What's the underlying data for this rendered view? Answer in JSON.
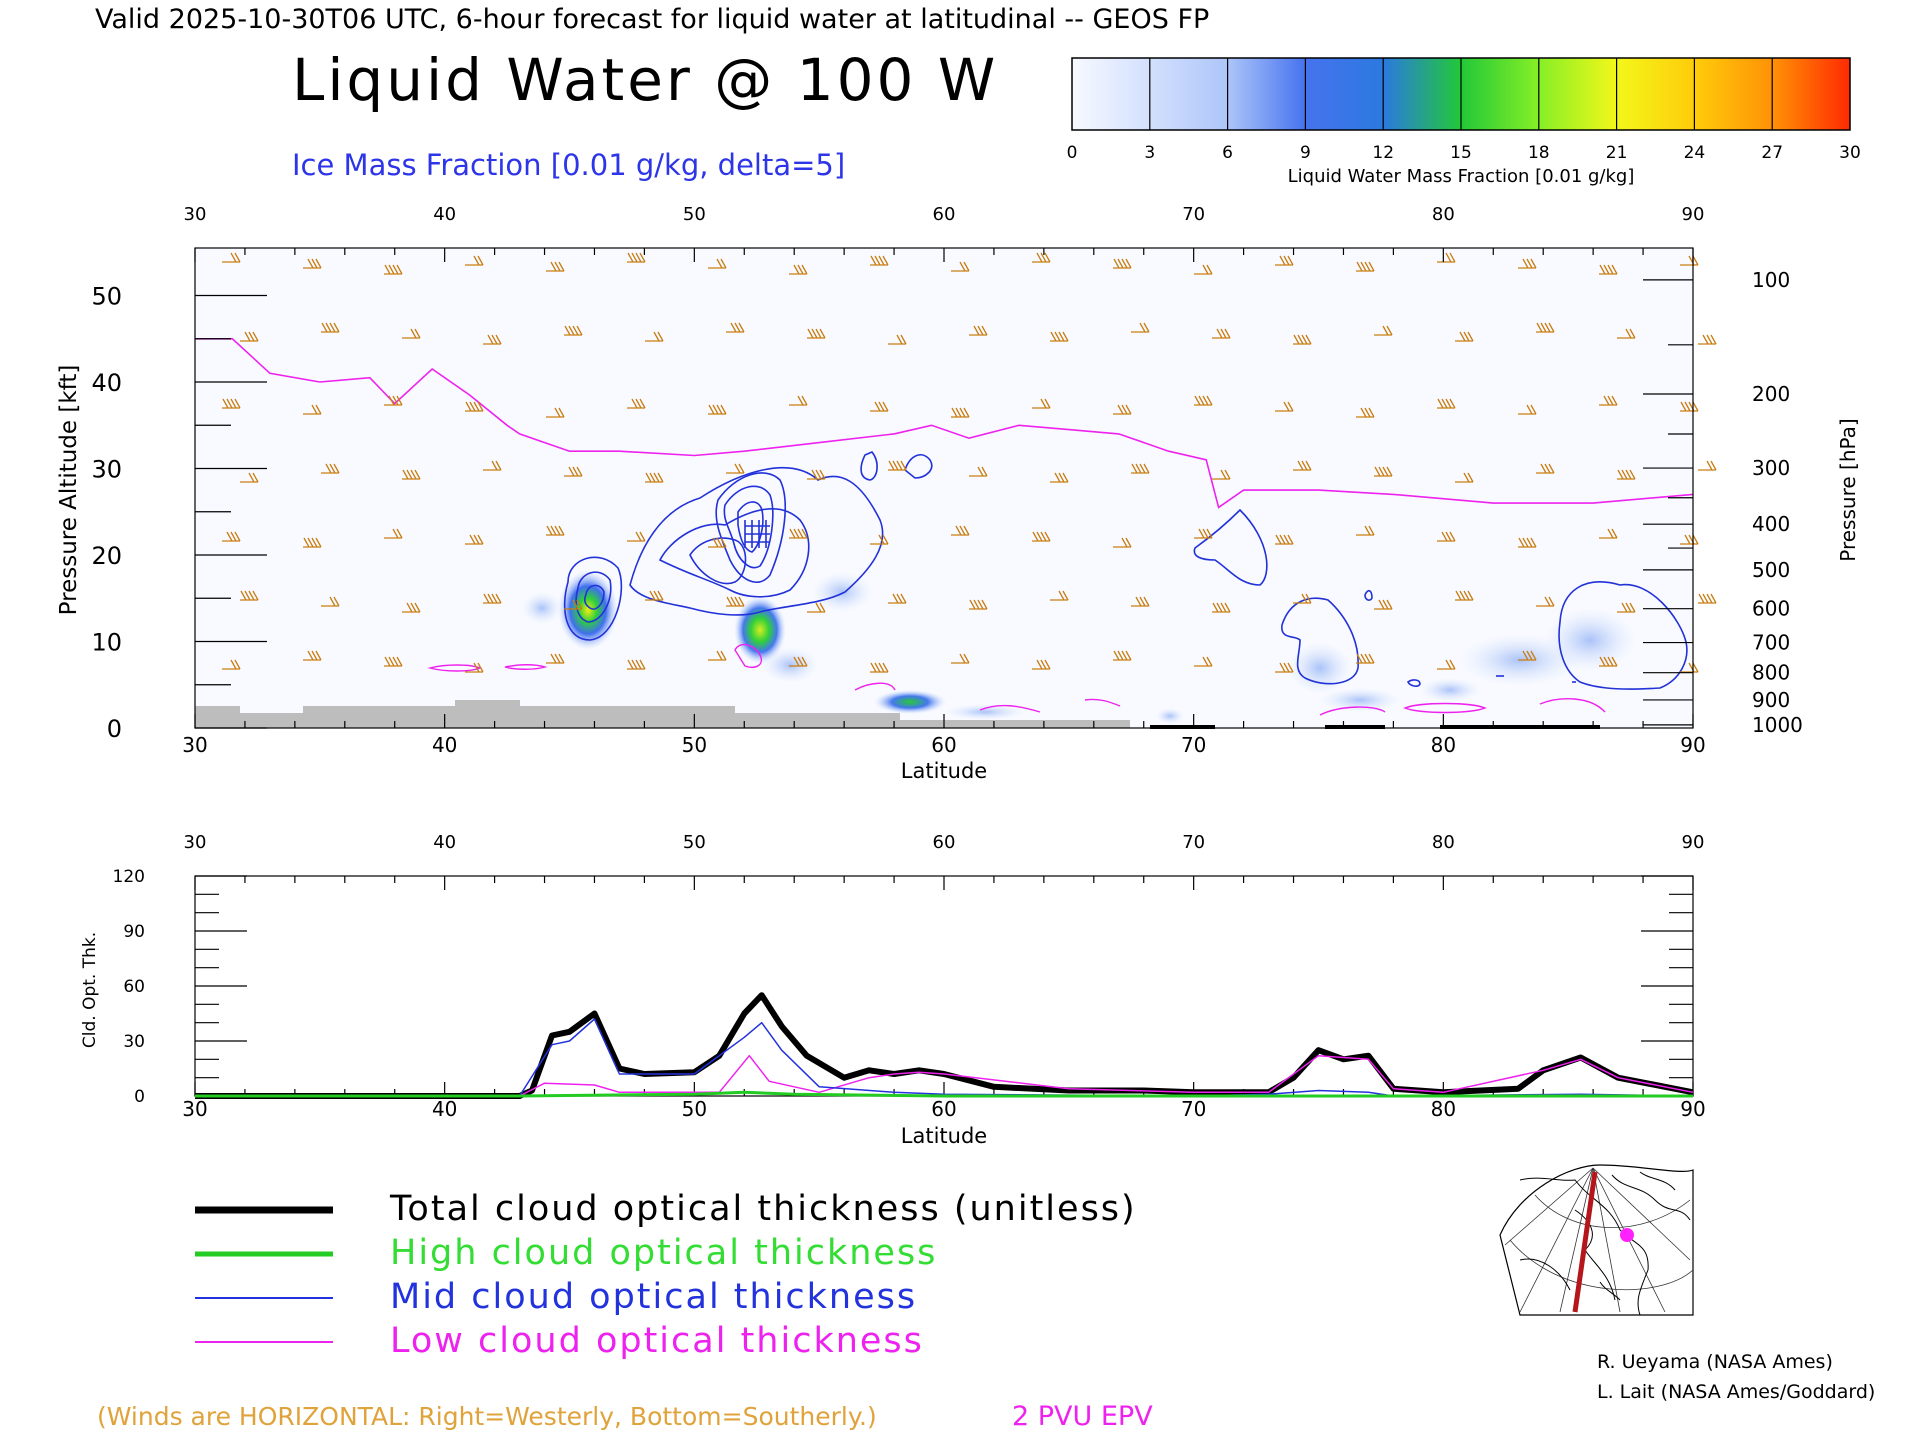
{
  "header": {
    "valid_line": "Valid 2025-10-30T06 UTC, 6-hour forecast for liquid water at latitudinal -- GEOS FP",
    "title": "Liquid Water @ 100 W",
    "ice_label": "Ice Mass Fraction [0.01 g/kg, delta=5]"
  },
  "colorbar": {
    "ticks": [
      "0",
      "3",
      "6",
      "9",
      "12",
      "15",
      "18",
      "21",
      "24",
      "27",
      "30"
    ],
    "label": "Liquid Water Mass Fraction [0.01 g/kg]",
    "colors": [
      "#eef3ff",
      "#c6d6fb",
      "#9ab7f6",
      "#3e6cf0",
      "#2d9fb0",
      "#30d43a",
      "#78ec25",
      "#e8f41a",
      "#ffc808",
      "#ff7d05"
    ]
  },
  "top_panel": {
    "y_label_left": "Pressure Altitude [kft]",
    "y_label_right": "Pressure [hPa]",
    "x_label": "Latitude",
    "x_ticks": [
      "30",
      "40",
      "50",
      "60",
      "70",
      "80",
      "90"
    ],
    "left_ticks": [
      "0",
      "10",
      "20",
      "30",
      "40",
      "50"
    ],
    "right_ticks": [
      "100",
      "200",
      "300",
      "400",
      "500",
      "600",
      "700",
      "800",
      "900",
      "1000"
    ]
  },
  "bottom_panel": {
    "y_label": "Cld. Opt. Thk.",
    "x_label": "Latitude",
    "x_ticks": [
      "30",
      "40",
      "50",
      "60",
      "70",
      "80",
      "90"
    ],
    "y_ticks": [
      "0",
      "30",
      "60",
      "90",
      "120"
    ]
  },
  "legend": {
    "items": [
      {
        "label": "Total cloud optical thickness (unitless)",
        "color": "#000000"
      },
      {
        "label": "High cloud optical thickness",
        "color": "#22cc22"
      },
      {
        "label": "Mid cloud optical thickness",
        "color": "#2233dd"
      },
      {
        "label": "Low cloud optical thickness",
        "color": "#ee22ee"
      }
    ]
  },
  "footer": {
    "winds_note": "(Winds are HORIZONTAL: Right=Westerly, Bottom=Southerly.)",
    "epv_label": "2 PVU EPV",
    "credit1": "R. Ueyama (NASA Ames)",
    "credit2": "L. Lait (NASA Ames/Goddard)"
  },
  "chart_data": [
    {
      "type": "heatmap",
      "title": "Liquid Water @ 100 W",
      "xlabel": "Latitude",
      "ylabel": "Pressure Altitude [kft]",
      "xlim": [
        30,
        90
      ],
      "ylim": [
        0,
        55
      ],
      "liquid_water_maxima": [
        {
          "lat": 45.8,
          "alt_kft": 13.5,
          "value": 21
        },
        {
          "lat": 52.6,
          "alt_kft": 11.5,
          "value": 18
        },
        {
          "lat": 58.7,
          "alt_kft": 3,
          "value": 15
        }
      ],
      "epv_2pvu_altitude": {
        "lat": [
          30,
          31.5,
          33,
          35,
          37,
          38,
          39.5,
          41,
          42.5,
          43,
          45,
          47,
          50,
          52,
          55,
          58,
          59.5,
          61,
          63,
          65,
          67,
          69,
          70.5,
          71,
          72,
          75,
          78,
          82,
          86,
          90
        ],
        "alt_kft": [
          45,
          45,
          41,
          40,
          40.5,
          37.5,
          41.5,
          38.5,
          35,
          34,
          32,
          32,
          31.5,
          32,
          33,
          34,
          35,
          33.5,
          35,
          34.5,
          34,
          32,
          31,
          25.5,
          27.5,
          27.5,
          27,
          26,
          26,
          27
        ]
      }
    },
    {
      "type": "line",
      "xlabel": "Latitude",
      "ylabel": "Cld. Opt. Thk.",
      "xlim": [
        30,
        90
      ],
      "ylim": [
        0,
        120
      ],
      "series": [
        {
          "name": "Total cloud optical thickness (unitless)",
          "x": [
            30,
            43,
            43.5,
            44.3,
            45,
            46,
            47,
            48,
            50,
            51,
            52,
            52.7,
            53.5,
            54.5,
            56,
            57,
            58,
            59,
            60,
            62,
            65,
            68,
            70,
            73,
            74,
            75,
            76,
            77,
            78,
            80,
            83,
            84,
            85.5,
            87,
            90
          ],
          "y": [
            0,
            0,
            3,
            33,
            35,
            45,
            15,
            12,
            13,
            22,
            45,
            55,
            38,
            22,
            10,
            14,
            12,
            14,
            12,
            5,
            3,
            3,
            2,
            2,
            10,
            25,
            20,
            22,
            4,
            2,
            4,
            14,
            21,
            10,
            2
          ]
        },
        {
          "name": "High cloud optical thickness",
          "x": [
            30,
            43,
            50,
            52,
            54,
            60,
            70,
            80,
            90
          ],
          "y": [
            0,
            0,
            1,
            2,
            1,
            0,
            0,
            0,
            0
          ]
        },
        {
          "name": "Mid cloud optical thickness",
          "x": [
            30,
            43,
            44.3,
            45,
            46,
            47,
            50,
            52,
            52.7,
            53.5,
            55,
            58,
            60,
            70,
            73,
            75,
            77,
            78,
            85.5,
            90
          ],
          "y": [
            0,
            0,
            28,
            30,
            42,
            12,
            12,
            32,
            40,
            25,
            5,
            2,
            1,
            0,
            1,
            3,
            2,
            0,
            1,
            0
          ]
        },
        {
          "name": "Low cloud optical thickness",
          "x": [
            30,
            43,
            44,
            46,
            47,
            51,
            52.2,
            53,
            55,
            57,
            58,
            59,
            60,
            65,
            70,
            73,
            75,
            77,
            78,
            80,
            84,
            85.5,
            87,
            90
          ],
          "y": [
            0,
            0,
            7,
            6,
            2,
            2,
            22,
            8,
            2,
            10,
            12,
            13,
            12,
            4,
            2,
            2,
            22,
            20,
            4,
            2,
            14,
            20,
            10,
            2
          ]
        }
      ]
    }
  ]
}
